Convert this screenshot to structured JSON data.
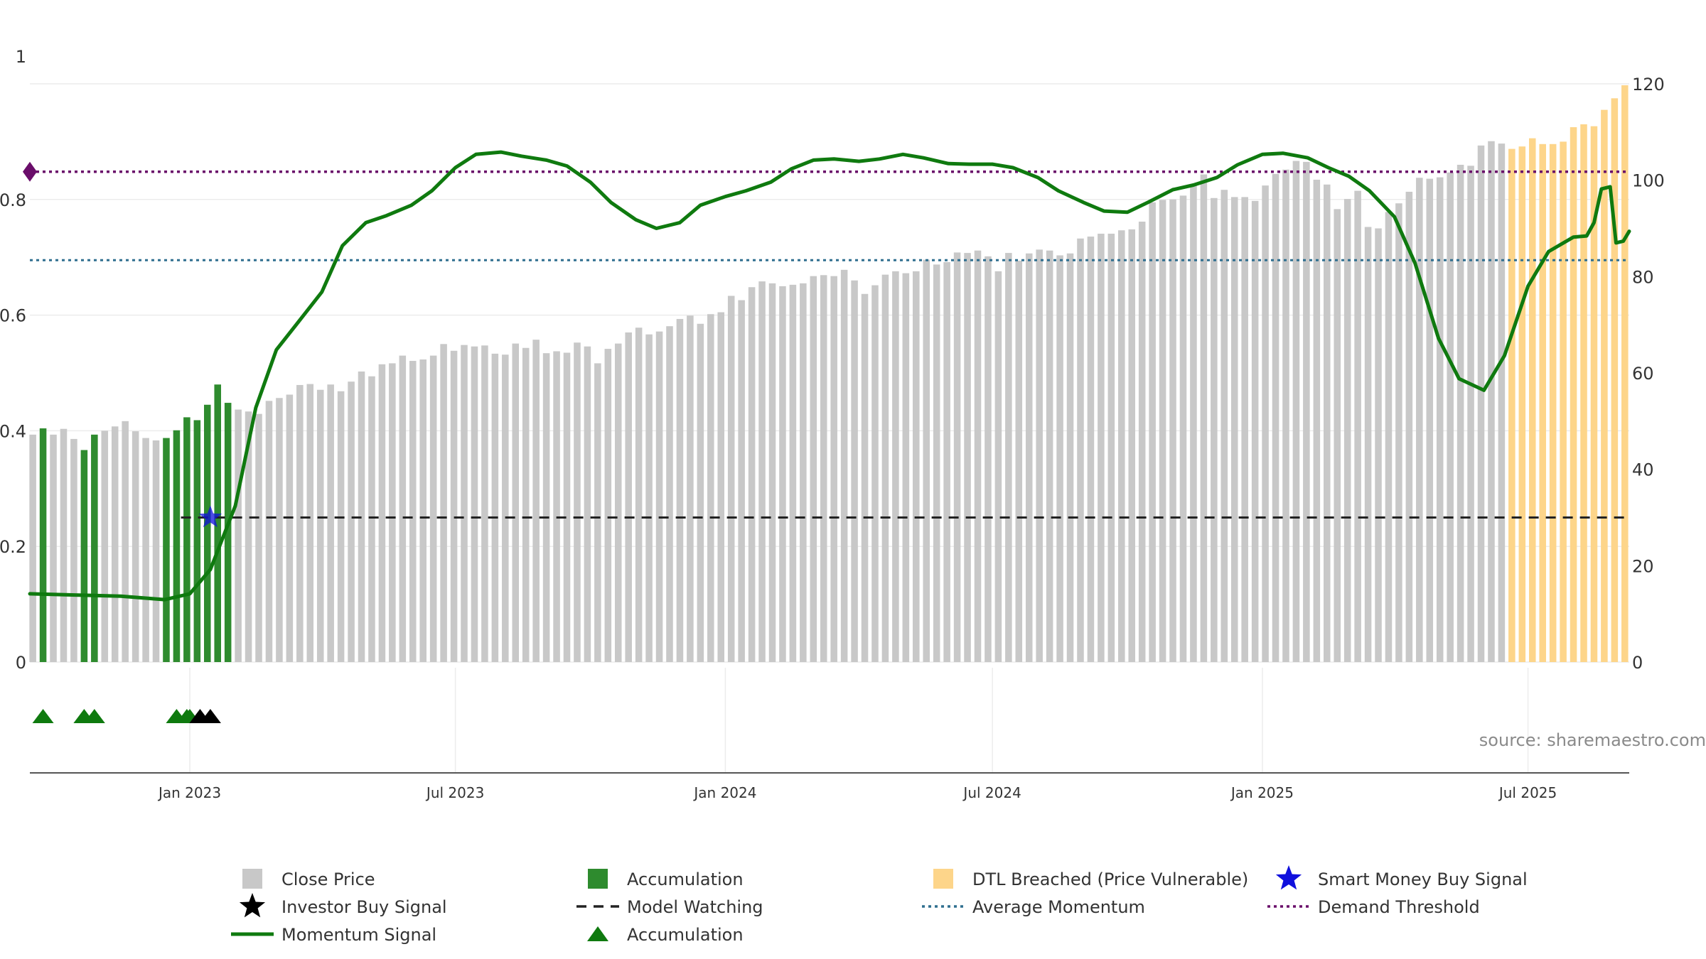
{
  "source": "source: sharemaestro.com",
  "colors": {
    "close_price": "#c8c8c8",
    "accumulation": "#2e8b2e",
    "dtl_breached": "#fdd58a",
    "momentum": "#0f7a0f",
    "average_momentum": "#2f6f8f",
    "demand_threshold": "#6a0d6a",
    "model_watching": "#222222",
    "smart_money": "#1010dd",
    "investor_buy": "#000000",
    "accumulation_marker": "#0f7a0f"
  },
  "chart_data": {
    "type": "bar",
    "x_axis": {
      "type": "date",
      "range": [
        "2022-09-14",
        "2025-09-08"
      ],
      "tick_labels": [
        "Jan 2023",
        "Jul 2023",
        "Jan 2024",
        "Jul 2024",
        "Jan 2025",
        "Jul 2025"
      ],
      "tick_dates": [
        "2023-01-01",
        "2023-07-01",
        "2024-01-01",
        "2024-07-01",
        "2025-01-01",
        "2025-07-01"
      ]
    },
    "y_left": {
      "range": [
        0,
        1
      ],
      "tick_values": [
        0,
        0.2,
        0.4,
        0.6,
        0.8,
        1
      ],
      "tick_labels": [
        "0",
        "0.2",
        "0.4",
        "0.6",
        "0.8",
        "1"
      ]
    },
    "y_right": {
      "range": [
        0,
        120
      ],
      "tick_values": [
        0,
        20,
        40,
        60,
        80,
        100,
        120
      ],
      "tick_labels": [
        "0",
        "20",
        "40",
        "60",
        "80",
        "100",
        "120"
      ]
    },
    "grid": true,
    "legend_position": "bottom",
    "legend": [
      {
        "label": "Close Price",
        "symbol": "square",
        "color_key": "close_price"
      },
      {
        "label": "Accumulation",
        "symbol": "square",
        "color_key": "accumulation"
      },
      {
        "label": "DTL Breached (Price Vulnerable)",
        "symbol": "square",
        "color_key": "dtl_breached"
      },
      {
        "label": "Smart Money Buy Signal",
        "symbol": "star",
        "color_key": "smart_money"
      },
      {
        "label": "Investor Buy Signal",
        "symbol": "star",
        "color_key": "investor_buy"
      },
      {
        "label": "Model Watching",
        "symbol": "dash",
        "color_key": "model_watching"
      },
      {
        "label": "Average Momentum",
        "symbol": "dot",
        "color_key": "average_momentum"
      },
      {
        "label": "Demand Threshold",
        "symbol": "dot",
        "color_key": "demand_threshold"
      },
      {
        "label": "Momentum Signal",
        "symbol": "line",
        "color_key": "momentum"
      },
      {
        "label": "Accumulation",
        "symbol": "triangle",
        "color_key": "accumulation_marker"
      }
    ],
    "series": {
      "close_price": {
        "start": "2022-09-16",
        "step_days": 7,
        "values": [
          47.2,
          48.5,
          47.2,
          48.4,
          46.3,
          44.0,
          47.2,
          48.0,
          48.9,
          50.0,
          47.9,
          46.5,
          46.0,
          46.5,
          48.1,
          50.8,
          50.2,
          53.4,
          57.6,
          53.8,
          52.4,
          52.0,
          51.5,
          54.2,
          54.8,
          55.5,
          57.5,
          57.7,
          56.5,
          57.6,
          56.2,
          58.2,
          60.3,
          59.3,
          61.8,
          62.0,
          63.6,
          62.5,
          62.8,
          63.6,
          66.0,
          64.6,
          65.8,
          65.5,
          65.7,
          64.0,
          63.8,
          66.1,
          65.2,
          66.9,
          64.1,
          64.5,
          64.2,
          66.3,
          65.5,
          62.0,
          65.0,
          66.1,
          68.4,
          69.4,
          68.0,
          68.6,
          69.7,
          71.2,
          71.9,
          70.2,
          72.2,
          72.6,
          76.0,
          75.1,
          77.8,
          79.0,
          78.6,
          78.0,
          78.3,
          78.6,
          80.1,
          80.3,
          80.1,
          81.4,
          79.2,
          76.4,
          78.2,
          80.4,
          81.1,
          80.7,
          81.1,
          83.5,
          82.5,
          83.0,
          85.0,
          84.9,
          85.4,
          84.2,
          81.1,
          84.9,
          83.3,
          84.8,
          85.6,
          85.4,
          84.4,
          84.8,
          87.9,
          88.3,
          88.9,
          88.9,
          89.6,
          89.8,
          91.4,
          95.4,
          95.9,
          96.0,
          96.8,
          99.0,
          101.2,
          96.3,
          98.0,
          96.5,
          96.5,
          95.7,
          98.9,
          101.3,
          102.2,
          104.0,
          103.8,
          100.1,
          99.1,
          94.0,
          96.1,
          97.8,
          90.3,
          90.0,
          93.4,
          95.2,
          97.6,
          100.5,
          100.3,
          100.6,
          101.6,
          103.2,
          103.0,
          107.2,
          108.1,
          107.6,
          106.5,
          107.0,
          108.7,
          107.5,
          107.5,
          108.0,
          111.0,
          111.6,
          111.2,
          114.6,
          117.0,
          119.7
        ],
        "category_by_index": {
          "accumulation": [
            1,
            5,
            6,
            13,
            14,
            15,
            16,
            17,
            18,
            19
          ],
          "dtl_breached_from_index": 144
        }
      },
      "momentum_signal": {
        "points": [
          [
            "2022-09-14",
            0.118
          ],
          [
            "2022-10-15",
            0.116
          ],
          [
            "2022-11-15",
            0.114
          ],
          [
            "2022-12-15",
            0.108
          ],
          [
            "2023-01-01",
            0.118
          ],
          [
            "2023-01-15",
            0.16
          ],
          [
            "2023-02-01",
            0.27
          ],
          [
            "2023-02-15",
            0.44
          ],
          [
            "2023-03-01",
            0.54
          ],
          [
            "2023-03-15",
            0.585
          ],
          [
            "2023-04-01",
            0.64
          ],
          [
            "2023-04-15",
            0.72
          ],
          [
            "2023-05-01",
            0.76
          ],
          [
            "2023-05-15",
            0.772
          ],
          [
            "2023-06-01",
            0.79
          ],
          [
            "2023-06-15",
            0.815
          ],
          [
            "2023-07-01",
            0.855
          ],
          [
            "2023-07-15",
            0.878
          ],
          [
            "2023-08-01",
            0.882
          ],
          [
            "2023-08-15",
            0.875
          ],
          [
            "2023-09-01",
            0.868
          ],
          [
            "2023-09-15",
            0.858
          ],
          [
            "2023-10-01",
            0.83
          ],
          [
            "2023-10-15",
            0.795
          ],
          [
            "2023-11-01",
            0.765
          ],
          [
            "2023-11-15",
            0.75
          ],
          [
            "2023-12-01",
            0.76
          ],
          [
            "2023-12-15",
            0.79
          ],
          [
            "2024-01-01",
            0.805
          ],
          [
            "2024-01-15",
            0.815
          ],
          [
            "2024-02-01",
            0.83
          ],
          [
            "2024-02-15",
            0.853
          ],
          [
            "2024-03-01",
            0.868
          ],
          [
            "2024-03-15",
            0.87
          ],
          [
            "2024-04-01",
            0.866
          ],
          [
            "2024-04-15",
            0.87
          ],
          [
            "2024-05-01",
            0.878
          ],
          [
            "2024-05-15",
            0.872
          ],
          [
            "2024-06-01",
            0.862
          ],
          [
            "2024-06-15",
            0.861
          ],
          [
            "2024-07-01",
            0.861
          ],
          [
            "2024-07-15",
            0.855
          ],
          [
            "2024-08-01",
            0.838
          ],
          [
            "2024-08-15",
            0.815
          ],
          [
            "2024-09-01",
            0.795
          ],
          [
            "2024-09-15",
            0.78
          ],
          [
            "2024-10-01",
            0.778
          ],
          [
            "2024-10-15",
            0.795
          ],
          [
            "2024-11-01",
            0.817
          ],
          [
            "2024-11-15",
            0.825
          ],
          [
            "2024-12-01",
            0.838
          ],
          [
            "2024-12-15",
            0.86
          ],
          [
            "2025-01-01",
            0.878
          ],
          [
            "2025-01-15",
            0.88
          ],
          [
            "2025-02-01",
            0.872
          ],
          [
            "2025-02-15",
            0.855
          ],
          [
            "2025-03-01",
            0.84
          ],
          [
            "2025-03-15",
            0.815
          ],
          [
            "2025-04-01",
            0.77
          ],
          [
            "2025-04-15",
            0.69
          ],
          [
            "2025-05-01",
            0.56
          ],
          [
            "2025-05-15",
            0.49
          ],
          [
            "2025-06-01",
            0.47
          ],
          [
            "2025-06-15",
            0.53
          ],
          [
            "2025-07-01",
            0.65
          ],
          [
            "2025-07-15",
            0.71
          ],
          [
            "2025-08-01",
            0.735
          ],
          [
            "2025-08-10",
            0.737
          ],
          [
            "2025-08-15",
            0.76
          ],
          [
            "2025-08-20",
            0.818
          ],
          [
            "2025-08-26",
            0.822
          ],
          [
            "2025-08-30",
            0.725
          ],
          [
            "2025-09-04",
            0.728
          ],
          [
            "2025-09-08",
            0.745
          ]
        ]
      },
      "average_momentum": 0.695,
      "demand_threshold": 0.848,
      "model_watching": {
        "value": 0.25,
        "start": "2022-12-26",
        "end": "2025-09-08"
      },
      "smart_money_buy_signal": [
        {
          "date": "2023-01-15",
          "value": 0.25
        }
      ],
      "investor_buy_signal_markers": [
        "2023-01-08",
        "2023-01-15"
      ],
      "accumulation_markers": [
        "2022-09-23",
        "2022-10-21",
        "2022-10-28",
        "2022-12-23",
        "2022-12-30",
        "2023-01-01"
      ]
    }
  }
}
